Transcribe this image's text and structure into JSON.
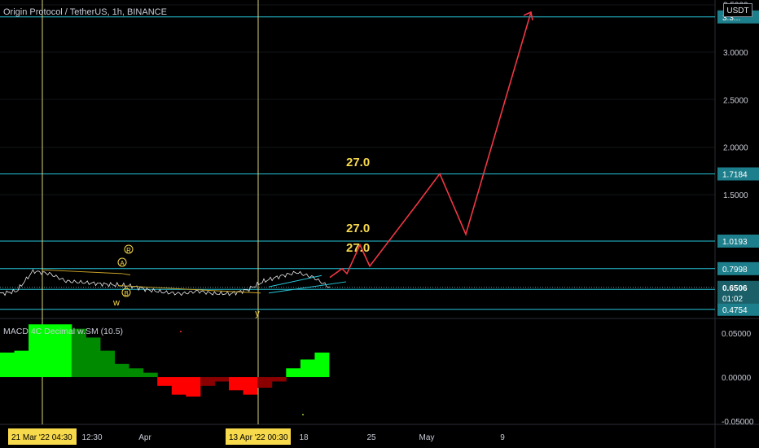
{
  "header": {
    "title": "Origin Protocol / TetherUS, 1h, BINANCE",
    "unit": "USDT"
  },
  "price_axis": {
    "ticks": [
      "3.5000",
      "3.0000",
      "2.5000",
      "2.0000",
      "1.5000"
    ],
    "levels": [
      {
        "value": 3.37,
        "label": "3.3...",
        "tag": "cyan"
      },
      {
        "value": 1.7184,
        "label": "1.7184",
        "tag": "cyan"
      },
      {
        "value": 1.0193,
        "label": "1.0193",
        "tag": "cyan"
      },
      {
        "value": 0.7998,
        "label": "0.7998",
        "tag": "cyan"
      },
      {
        "value": 0.6349,
        "label": "0.6349",
        "tag": "cyan"
      },
      {
        "value": 0.4754,
        "label": "0.4754",
        "tag": "cyan"
      }
    ],
    "last_price": {
      "value": 0.6506,
      "label": "0.6506",
      "countdown": "01:02"
    }
  },
  "indicator": {
    "title": "MACD 4C Decimal w.SM (10.5)",
    "ticks": [
      "0.05000",
      "0.00000",
      "-0.05000"
    ]
  },
  "time_axis": {
    "labels": [
      "12:30",
      "Apr",
      "18",
      "25",
      "May",
      "9"
    ],
    "crosshair_labels": [
      "21 Mar '22   04:30",
      "13 Apr '22   00:30"
    ]
  },
  "annotations": {
    "targets": [
      "27.0",
      "27.0",
      "27.0"
    ],
    "waves": [
      "R",
      "A",
      "B",
      "w",
      "y"
    ]
  },
  "colors": {
    "background": "#000000",
    "level_line": "#26c6da",
    "projection": "#f23645",
    "target_text": "#f7d94c",
    "crosshair": "#d7d47a",
    "macd_bright": "#00ff00",
    "macd_dark": "#008a00",
    "macd_neg_red": "#ff0000",
    "macd_neg_dark": "#8a0000"
  },
  "chart_data": {
    "type": "line",
    "title": "Origin Protocol / TetherUS, 1h, BINANCE",
    "xlabel": "",
    "ylabel": "",
    "ylim": [
      0.45,
      3.55
    ],
    "series": [
      {
        "name": "",
        "kind": "price",
        "values": [
          0.6,
          0.62,
          0.78,
          0.76,
          0.7,
          0.69,
          0.68,
          0.67,
          0.66,
          0.63,
          0.61,
          0.6,
          0.62,
          0.6,
          0.6,
          0.63,
          0.7,
          0.74,
          0.77,
          0.73,
          0.65
        ]
      },
      {
        "name": "",
        "kind": "projection",
        "values": [
          0.73,
          0.8,
          0.76,
          0.99,
          0.82,
          1.41,
          1.72,
          1.09,
          3.42
        ]
      }
    ],
    "macd": {
      "values": [
        0.028,
        0.03,
        0.06,
        0.06,
        0.06,
        0.055,
        0.045,
        0.03,
        0.015,
        0.01,
        0.005,
        -0.01,
        -0.02,
        -0.022,
        -0.01,
        -0.005,
        -0.015,
        -0.02,
        -0.012,
        -0.005,
        0.01,
        0.02,
        0.028
      ]
    }
  }
}
